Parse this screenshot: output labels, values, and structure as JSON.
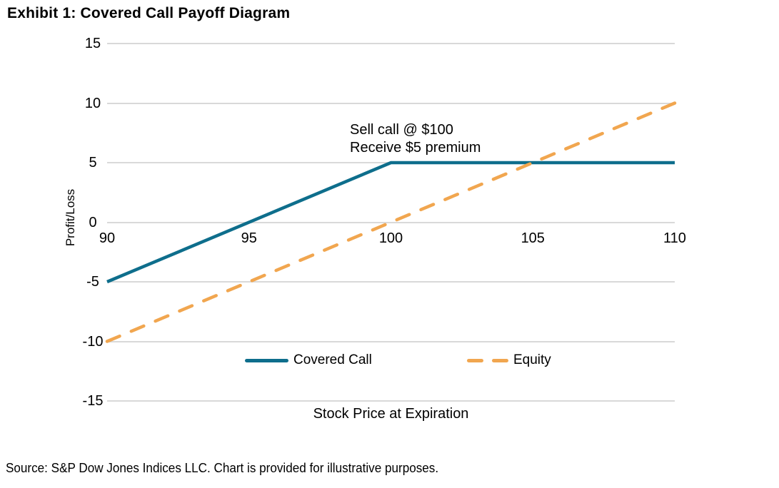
{
  "title": "Exhibit 1: Covered Call Payoff Diagram",
  "source": "Source: S&P Dow Jones Indices LLC. Chart is provided for illustrative purposes.",
  "colors": {
    "covered_call": "#0E6E8C",
    "equity": "#F1A64F",
    "gridline": "#D9D9D9",
    "text": "#000000",
    "background": "#FFFFFF"
  },
  "chart_data": {
    "type": "line",
    "title": "Exhibit 1: Covered Call Payoff Diagram",
    "xlabel": "Stock Price at Expiration",
    "ylabel": "Profit/Loss",
    "xlim": [
      90,
      110
    ],
    "ylim": [
      -15,
      15
    ],
    "xticks": [
      90,
      95,
      100,
      105,
      110
    ],
    "yticks": [
      15,
      10,
      5,
      0,
      -5,
      -10,
      -15
    ],
    "grid": "horizontal-gridlines-only",
    "legend_position": "bottom-inside",
    "series": [
      {
        "name": "Covered Call",
        "style": "solid",
        "color": "#0E6E8C",
        "points": [
          [
            90,
            -5
          ],
          [
            100,
            5
          ],
          [
            110,
            5
          ]
        ]
      },
      {
        "name": "Equity",
        "style": "dashed",
        "color": "#F1A64F",
        "points": [
          [
            90,
            -10
          ],
          [
            110,
            10
          ]
        ]
      }
    ],
    "annotation": {
      "lines": [
        "Sell call @ $100",
        "Receive $5 premium"
      ]
    }
  }
}
